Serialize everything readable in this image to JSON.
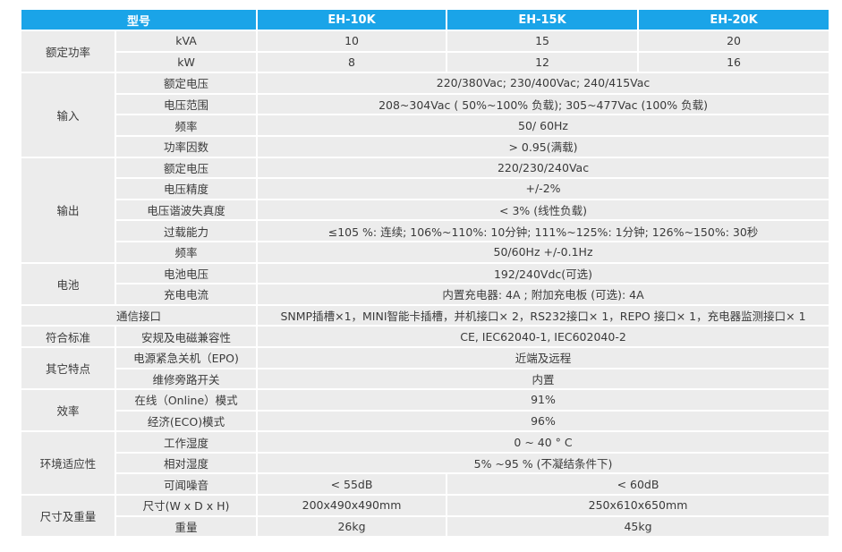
{
  "header": {
    "model": "型号",
    "cols": [
      "EH-10K",
      "EH-15K",
      "EH-20K"
    ]
  },
  "rated_power": {
    "group": "额定功率",
    "kva_label": "kVA",
    "kva": [
      "10",
      "15",
      "20"
    ],
    "kw_label": "kW",
    "kw": [
      "8",
      "12",
      "16"
    ]
  },
  "input": {
    "group": "输入",
    "rows": [
      {
        "label": "额定电压",
        "value": "220/380Vac; 230/400Vac; 240/415Vac"
      },
      {
        "label": "电压范围",
        "value": "208~304Vac ( 50%~100% 负载); 305~477Vac (100% 负载)"
      },
      {
        "label": "频率",
        "value": "50/ 60Hz"
      },
      {
        "label": "功率因数",
        "value": "> 0.95(满载)"
      }
    ]
  },
  "output": {
    "group": "输出",
    "rows": [
      {
        "label": "额定电压",
        "value": "220/230/240Vac"
      },
      {
        "label": "电压精度",
        "value": "+/-2%"
      },
      {
        "label": "电压谐波失真度",
        "value": "< 3% (线性负载)"
      },
      {
        "label": "过载能力",
        "value": "≤105 %: 连续; 106%~110%: 10分钟; 111%~125%: 1分钟; 126%~150%: 30秒"
      },
      {
        "label": "频率",
        "value": "50/60Hz +/-0.1Hz"
      }
    ]
  },
  "battery": {
    "group": "电池",
    "rows": [
      {
        "label": "电池电压",
        "value": "192/240Vdc(可选)"
      },
      {
        "label": "充电电流",
        "value": "内置充电器: 4A ; 附加充电板 (可选): 4A"
      }
    ]
  },
  "comm": {
    "label": "通信接口",
    "value": "SNMP插槽×1，MINI智能卡插槽，并机接口× 2，RS232接口× 1，REPO 接口× 1，充电器监测接口× 1"
  },
  "compliance": {
    "group": "符合标准",
    "label": "安规及电磁兼容性",
    "value": "CE, IEC62040-1, IEC602040-2"
  },
  "other": {
    "group": "其它特点",
    "rows": [
      {
        "label": "电源紧急关机（EPO)",
        "value": "近端及远程"
      },
      {
        "label": "维修旁路开关",
        "value": "内置"
      }
    ]
  },
  "efficiency": {
    "group": "效率",
    "rows": [
      {
        "label": "在线（Online）模式",
        "value": "91%"
      },
      {
        "label": "经济(ECO)模式",
        "value": "96%"
      }
    ]
  },
  "environment": {
    "group": "环境适应性",
    "rows": [
      {
        "label": "工作湿度",
        "value": "0 ~ 40 ° C"
      },
      {
        "label": "相对湿度",
        "value": "5% ~95 % (不凝结条件下)"
      }
    ],
    "noise_label": "可闻噪音",
    "noise": [
      "< 55dB",
      "< 60dB"
    ]
  },
  "dimensions": {
    "group": "尺寸及重量",
    "size_label": "尺寸(W x D x H)",
    "size": [
      "200x490x490mm",
      "250x610x650mm"
    ],
    "weight_label": "重量",
    "weight": [
      "26kg",
      "45kg"
    ]
  }
}
